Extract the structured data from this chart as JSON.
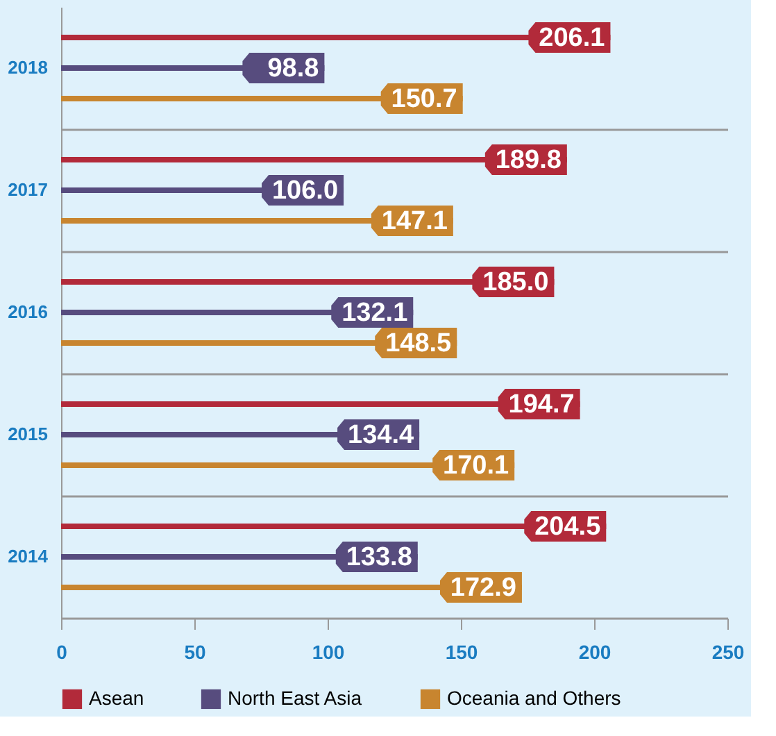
{
  "chart_data": {
    "type": "bar",
    "orientation": "horizontal",
    "categories": [
      "2018",
      "2017",
      "2016",
      "2015",
      "2014"
    ],
    "series": [
      {
        "name": "Asean",
        "color": "#b22a3a",
        "values": [
          206.1,
          189.8,
          185.0,
          194.7,
          204.5
        ],
        "value_labels": [
          "206.1",
          "189.8",
          "185.0",
          "194.7",
          "204.5"
        ]
      },
      {
        "name": "North East Asia",
        "color": "#574c7e",
        "values": [
          98.8,
          106.0,
          132.1,
          134.4,
          133.8
        ],
        "value_labels": [
          "98.8",
          "106.0",
          "132.1",
          "134.4",
          "133.8"
        ]
      },
      {
        "name": "Oceania and Others",
        "color": "#c8852f",
        "values": [
          150.7,
          147.1,
          148.5,
          170.1,
          172.9
        ],
        "value_labels": [
          "150.7",
          "147.1",
          "148.5",
          "170.1",
          "172.9"
        ]
      }
    ],
    "xlim": [
      0,
      250
    ],
    "xticks": [
      0,
      50,
      100,
      150,
      200,
      250
    ],
    "grid": "y",
    "legend": "bottom"
  }
}
